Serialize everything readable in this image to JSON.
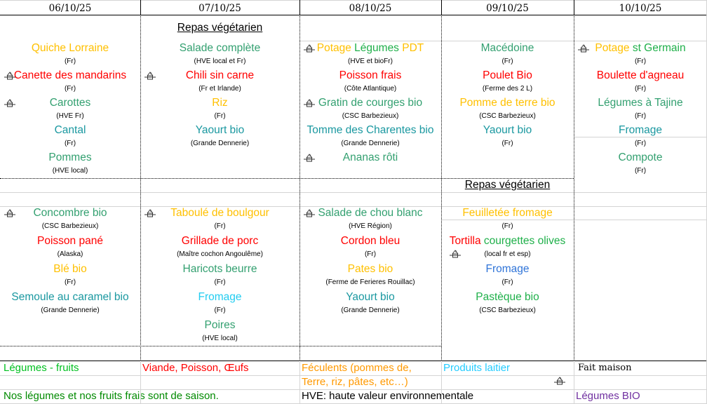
{
  "palette": {
    "starch": "#ffc000",
    "protein": "#ff0000",
    "vegetable": "#33a070",
    "vegetable_bright": "#1fb04a",
    "dairy": "#1a98a0",
    "dairy_light": "#22ccf0",
    "dairy_blue": "#2f74d8"
  },
  "days": [
    {
      "date": "06/10/25",
      "lunch": {
        "banner": "",
        "items": [
          {
            "segments": [
              {
                "text": "Quiche Lorraine",
                "color": "#ffc000"
              }
            ],
            "note": "(Fr)",
            "homemade": false
          },
          {
            "segments": [
              {
                "text": "Canette des mandarins",
                "color": "#ff0000"
              }
            ],
            "note": "(Fr)",
            "homemade": true
          },
          {
            "segments": [
              {
                "text": "Carottes",
                "color": "#33a070"
              }
            ],
            "note": "(HVE Fr)",
            "homemade": true
          },
          {
            "segments": [
              {
                "text": "Cantal",
                "color": "#1a98a0"
              }
            ],
            "note": "(Fr)",
            "homemade": false
          },
          {
            "segments": [
              {
                "text": "Pommes",
                "color": "#33a070"
              }
            ],
            "note": "(HVE local)",
            "homemade": false
          }
        ]
      },
      "dinner": {
        "banner": "",
        "items": [
          {
            "segments": [
              {
                "text": "Concombre bio",
                "color": "#33a070"
              }
            ],
            "note": "(CSC Barbezieux)",
            "homemade": true
          },
          {
            "segments": [
              {
                "text": "Poisson pané",
                "color": "#ff0000"
              }
            ],
            "note": "(Alaska)",
            "homemade": false
          },
          {
            "segments": [
              {
                "text": "Blé bio",
                "color": "#ffc000"
              }
            ],
            "note": "(Fr)",
            "homemade": false
          },
          {
            "segments": [
              {
                "text": "Semoule au caramel bio",
                "color": "#1a98a0"
              }
            ],
            "note": "(Grande Dennerie)",
            "homemade": false
          }
        ]
      }
    },
    {
      "date": "07/10/25",
      "lunch": {
        "banner": "Repas végétarien",
        "items": [
          {
            "segments": [
              {
                "text": "Salade complète",
                "color": "#33a070"
              }
            ],
            "note": "(HVE local et Fr)",
            "homemade": false
          },
          {
            "segments": [
              {
                "text": "Chili sin carne",
                "color": "#ff0000"
              }
            ],
            "note": "(Fr et Irlande)",
            "homemade": true
          },
          {
            "segments": [
              {
                "text": "Riz",
                "color": "#ffc000"
              }
            ],
            "note": "(Fr)",
            "homemade": false
          },
          {
            "segments": [
              {
                "text": "Yaourt bio",
                "color": "#1a98a0"
              }
            ],
            "note": "(Grande Dennerie)",
            "homemade": false
          }
        ]
      },
      "dinner": {
        "banner": "",
        "items": [
          {
            "segments": [
              {
                "text": "Taboulé de boulgour",
                "color": "#ffc000"
              }
            ],
            "note": "(Fr)",
            "homemade": true
          },
          {
            "segments": [
              {
                "text": "Grillade de porc",
                "color": "#ff0000"
              }
            ],
            "note": "(Maître cochon Angoulême)",
            "homemade": false
          },
          {
            "segments": [
              {
                "text": "Haricots beurre",
                "color": "#33a070"
              }
            ],
            "note": "(Fr)",
            "homemade": false
          },
          {
            "segments": [
              {
                "text": "Fromage",
                "color": "#22ccf0"
              }
            ],
            "note": "(Fr)",
            "homemade": false
          },
          {
            "segments": [
              {
                "text": "Poires",
                "color": "#33a070"
              }
            ],
            "note": "(HVE local)",
            "homemade": false
          }
        ]
      }
    },
    {
      "date": "08/10/25",
      "lunch": {
        "banner": "",
        "items": [
          {
            "segments": [
              {
                "text": "Potage ",
                "color": "#ffc000"
              },
              {
                "text": "Légumes ",
                "color": "#1fb04a"
              },
              {
                "text": "PDT",
                "color": "#ffc000"
              }
            ],
            "note": "(HVE et bioFr)",
            "homemade": true
          },
          {
            "segments": [
              {
                "text": "Poisson frais",
                "color": "#ff0000"
              }
            ],
            "note": "(Côte Atlantique)",
            "homemade": false
          },
          {
            "segments": [
              {
                "text": "Gratin de courges bio",
                "color": "#33a070"
              }
            ],
            "note": "(CSC Barbezieux)",
            "homemade": true
          },
          {
            "segments": [
              {
                "text": "Tomme des Charentes bio",
                "color": "#1a98a0"
              }
            ],
            "note": "(Grande Dennerie)",
            "homemade": false
          },
          {
            "segments": [
              {
                "text": "Ananas rôti",
                "color": "#33a070"
              }
            ],
            "note": "",
            "homemade": true
          }
        ]
      },
      "dinner": {
        "banner": "",
        "items": [
          {
            "segments": [
              {
                "text": "Salade de chou blanc",
                "color": "#33a070"
              }
            ],
            "note": "(HVE Région)",
            "homemade": true
          },
          {
            "segments": [
              {
                "text": "Cordon bleu",
                "color": "#ff0000"
              }
            ],
            "note": "(Fr)",
            "homemade": false
          },
          {
            "segments": [
              {
                "text": "Pates bio",
                "color": "#ffc000"
              }
            ],
            "note": "(Ferme de Ferieres Rouillac)",
            "homemade": false
          },
          {
            "segments": [
              {
                "text": "Yaourt bio",
                "color": "#1a98a0"
              }
            ],
            "note": "(Grande Dennerie)",
            "homemade": false
          }
        ]
      }
    },
    {
      "date": "09/10/25",
      "lunch": {
        "banner": "",
        "items": [
          {
            "segments": [
              {
                "text": "Macédoine",
                "color": "#33a070"
              }
            ],
            "note": "(Fr)",
            "homemade": false
          },
          {
            "segments": [
              {
                "text": "Poulet Bio",
                "color": "#ff0000"
              }
            ],
            "note": "(Ferme des 2 L)",
            "homemade": false
          },
          {
            "segments": [
              {
                "text": "Pomme de terre bio",
                "color": "#ffc000"
              }
            ],
            "note": "(CSC Barbezieux)",
            "homemade": false
          },
          {
            "segments": [
              {
                "text": "Yaourt  bio",
                "color": "#1a98a0"
              }
            ],
            "note": "(Fr)",
            "homemade": false
          }
        ]
      },
      "dinner": {
        "banner": "Repas végétarien",
        "items": [
          {
            "segments": [
              {
                "text": "Feuilletée fromage",
                "color": "#ffc000"
              }
            ],
            "note": "(Fr)",
            "homemade": false
          },
          {
            "segments": [
              {
                "text": "Tortilla ",
                "color": "#ff0000"
              },
              {
                "text": "courgettes olives",
                "color": "#1fb04a"
              }
            ],
            "note": "(local fr et esp)",
            "homemade": true
          },
          {
            "segments": [
              {
                "text": "Fromage",
                "color": "#2f74d8"
              }
            ],
            "note": "(Fr)",
            "homemade": false
          },
          {
            "segments": [
              {
                "text": "Pastèque bio",
                "color": "#1fb04a"
              }
            ],
            "note": "(CSC Barbezieux)",
            "homemade": false
          }
        ]
      }
    },
    {
      "date": "10/10/25",
      "lunch": {
        "banner": "",
        "items": [
          {
            "segments": [
              {
                "text": "Potage ",
                "color": "#ffc000"
              },
              {
                "text": "st Germain",
                "color": "#1fb04a"
              }
            ],
            "note": "(Fr)",
            "homemade": true
          },
          {
            "segments": [
              {
                "text": "Boulette d'agneau",
                "color": "#ff0000"
              }
            ],
            "note": "(Fr)",
            "homemade": false
          },
          {
            "segments": [
              {
                "text": "Légumes à Tajine",
                "color": "#33a070"
              }
            ],
            "note": "(Fr)",
            "homemade": false
          },
          {
            "segments": [
              {
                "text": "Fromage",
                "color": "#1a98a0"
              }
            ],
            "note": "(Fr)",
            "homemade": false
          },
          {
            "segments": [
              {
                "text": "Compote",
                "color": "#33a070"
              }
            ],
            "note": "(Fr)",
            "homemade": false
          }
        ]
      },
      "dinner": {
        "banner": "",
        "items": []
      }
    }
  ],
  "legend": {
    "vegetables": {
      "text": "Légumes - fruits",
      "color": "#00c020"
    },
    "protein": {
      "text": "Viande, Poisson, Œufs",
      "color": "#ff0000"
    },
    "starch_line1": {
      "text": "Féculents (pommes de,",
      "color": "#ff9900"
    },
    "starch_line2": {
      "text": "Terre, riz, pâtes, etc…)",
      "color": "#ff9900"
    },
    "dairy": {
      "text": "Produits laitier",
      "color": "#22ccff"
    },
    "homemade": {
      "text": "Fait maison",
      "icon": "homemade-house-icon"
    },
    "season": {
      "text": "Nos légumes et nos fruits frais sont de saison.",
      "color": "#008a00"
    },
    "hve": {
      "text": "HVE: haute valeur environnementale",
      "color": "#000000"
    },
    "bio": {
      "text": "Légumes BIO",
      "color": "#7030a0"
    }
  }
}
